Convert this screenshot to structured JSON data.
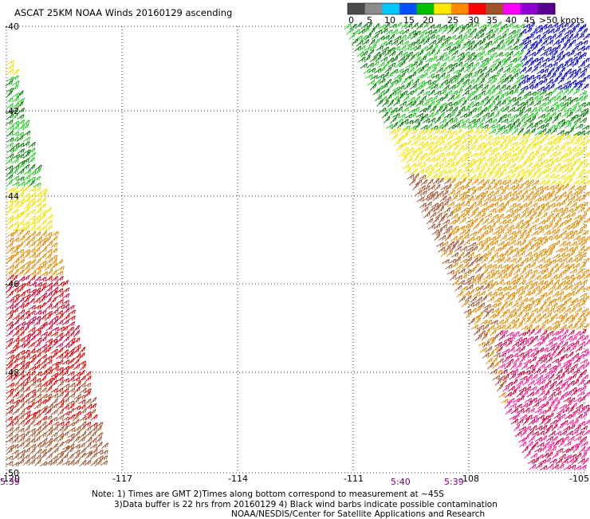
{
  "title": "ASCAT 25KM NOAA Winds 20160129 ascending",
  "legend": {
    "unit_label": ">50 knots",
    "labels": [
      "0",
      "5",
      "10",
      "15",
      "20",
      "25",
      "30",
      "35",
      "40",
      "45"
    ],
    "colors": [
      "#4a4a4a",
      "#8c8c8c",
      "#00c8ff",
      "#0050ff",
      "#00c000",
      "#ffe800",
      "#ff8c00",
      "#ff0000",
      "#a0522d",
      "#ff00ff",
      "#9000d0",
      "#5a0090"
    ]
  },
  "axes": {
    "lat_labels": [
      "-40",
      "-42",
      "-44",
      "-46",
      "-48",
      "-50"
    ],
    "lon_labels": [
      "-120",
      "-117",
      "-114",
      "-111",
      "-108",
      "-105"
    ]
  },
  "times": {
    "left_time": "5:39",
    "right_times": [
      "5:40",
      "5:39"
    ]
  },
  "notes": {
    "line1": "Note: 1) Times are GMT 2)Times along bottom correspond to measurement at ~45S",
    "line2": "3)Data buffer is 22 hrs from 20160129 4) Black wind barbs indicate possible contamination",
    "line3": "NOAA/NESDIS/Center for Satellite Applications and Research"
  },
  "swath_colors": {
    "blue": "#0000cc",
    "green_light": "#22cc22",
    "green_dark": "#007a00",
    "yellow": "#f2e200",
    "orange": "#e38a00",
    "brown": "#a0522d",
    "red": "#dd0000",
    "crimson": "#c8003c",
    "pink": "#ff1493"
  }
}
